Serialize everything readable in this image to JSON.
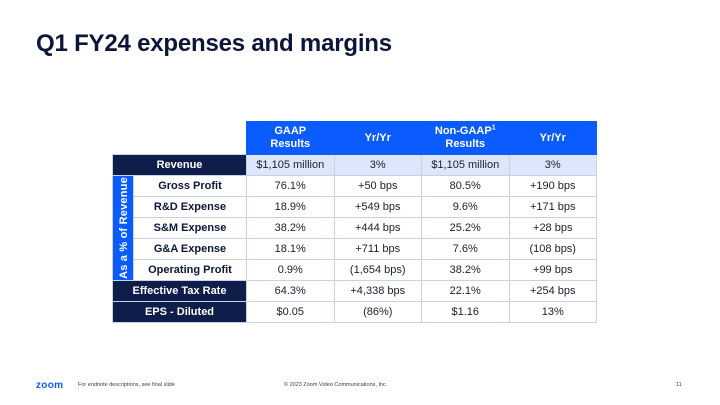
{
  "title": "Q1 FY24 expenses and margins",
  "table": {
    "headers": [
      "GAAP Results",
      "Yr/Yr",
      "Non-GAAP",
      "Yr/Yr"
    ],
    "header_gaap_line1": "GAAP",
    "header_gaap_line2": "Results",
    "header_yoy1": "Yr/Yr",
    "header_nongaap_line1": "Non-GAAP",
    "header_nongaap_sup": "1",
    "header_nongaap_line2": "Results",
    "header_yoy2": "Yr/Yr",
    "side_label": "As a % of Revenue",
    "revenue": {
      "label": "Revenue",
      "values": [
        "$1,105 million",
        "3%",
        "$1,105 million",
        "3%"
      ]
    },
    "pct_rows": [
      {
        "label": "Gross Profit",
        "values": [
          "76.1%",
          "+50 bps",
          "80.5%",
          "+190 bps"
        ]
      },
      {
        "label": "R&D Expense",
        "values": [
          "18.9%",
          "+549 bps",
          "9.6%",
          "+171 bps"
        ]
      },
      {
        "label": "S&M Expense",
        "values": [
          "38.2%",
          "+444 bps",
          "25.2%",
          "+28 bps"
        ]
      },
      {
        "label": "G&A Expense",
        "values": [
          "18.1%",
          "+711 bps",
          "7.6%",
          "(108 bps)"
        ]
      },
      {
        "label": "Operating Profit",
        "values": [
          "0.9%",
          "(1,654 bps)",
          "38.2%",
          "+99 bps"
        ]
      }
    ],
    "tax": {
      "label": "Effective Tax Rate",
      "values": [
        "64.3%",
        "+4,338 bps",
        "22.1%",
        "+254 bps"
      ]
    },
    "eps": {
      "label": "EPS - Diluted",
      "values": [
        "$0.05",
        "(86%)",
        "$1.16",
        "13%"
      ]
    }
  },
  "footer": {
    "logo": "zoom",
    "footnote": "For endnote descriptions, see final slide",
    "copyright": "© 2023 Zoom Video Communications, Inc.",
    "page": "11"
  },
  "colors": {
    "navy": "#0e1d4a",
    "brand_blue": "#0b5cff",
    "highlight": "#dde6fb"
  }
}
